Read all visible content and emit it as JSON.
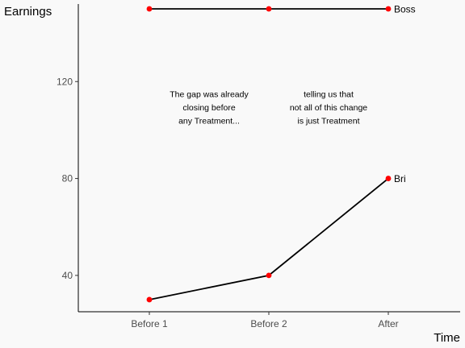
{
  "chart_data": {
    "type": "line",
    "title": "",
    "xlabel": "Time",
    "ylabel": "Earnings",
    "categories": [
      "Before 1",
      "Before 2",
      "After"
    ],
    "ylim": [
      25,
      152
    ],
    "yticks": [
      40,
      80,
      120
    ],
    "grid": false,
    "series": [
      {
        "name": "Boss",
        "values": [
          150,
          150,
          150
        ]
      },
      {
        "name": "Bri",
        "values": [
          30,
          40,
          80
        ]
      }
    ],
    "annotations": [
      {
        "lines": [
          "The gap was already",
          "closing before",
          "any Treatment..."
        ],
        "x": 1.5,
        "y": [
          115,
          109.5,
          104
        ]
      },
      {
        "lines": [
          "telling us that",
          "not all of this change",
          "is just Treatment"
        ],
        "x": 2.5,
        "y": [
          115,
          109.5,
          104
        ]
      }
    ],
    "colors": {
      "line": "#000000",
      "point": "#ff0000",
      "background": "#f9f9f9",
      "axis": "#000000"
    }
  }
}
